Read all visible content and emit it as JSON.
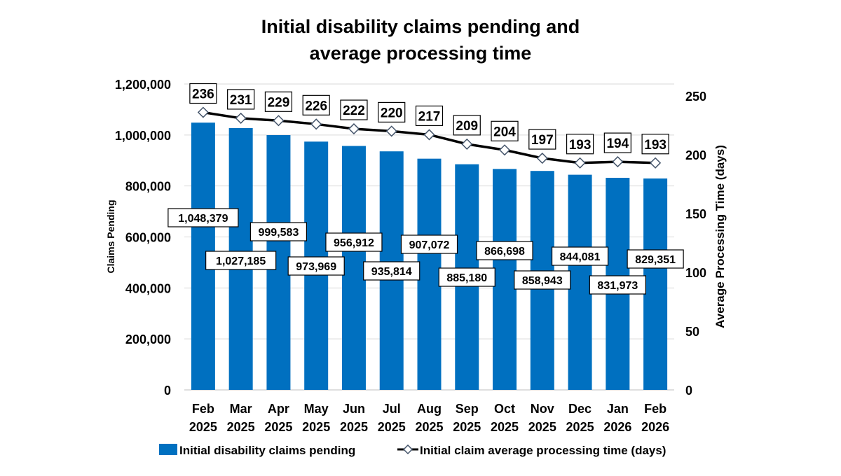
{
  "chart_data": {
    "type": "bar+line",
    "title": "Initial disability claims pending and average processing time",
    "title_lines": [
      "Initial disability claims pending and",
      "average processing time"
    ],
    "categories": [
      [
        "Feb",
        "2025"
      ],
      [
        "Mar",
        "2025"
      ],
      [
        "Apr",
        "2025"
      ],
      [
        "May",
        "2025"
      ],
      [
        "Jun",
        "2025"
      ],
      [
        "Jul",
        "2025"
      ],
      [
        "Aug",
        "2025"
      ],
      [
        "Sep",
        "2025"
      ],
      [
        "Oct",
        "2025"
      ],
      [
        "Nov",
        "2025"
      ],
      [
        "Dec",
        "2025"
      ],
      [
        "Jan",
        "2026"
      ],
      [
        "Feb",
        "2026"
      ]
    ],
    "ylabel_left": "Claims Pending",
    "ylabel_right": "Average Processing Time (days)",
    "ylim_left": [
      0,
      1200000
    ],
    "yticks_left": [
      "0",
      "200,000",
      "400,000",
      "600,000",
      "800,000",
      "1,000,000",
      "1,200,000"
    ],
    "ylim_right": [
      0,
      250
    ],
    "yticks_right": [
      "0",
      "50",
      "100",
      "150",
      "200",
      "250"
    ],
    "grid": true,
    "legend_position": "bottom",
    "series": [
      {
        "name": "Initial disability claims pending",
        "type": "bar",
        "axis": "left",
        "color": "#0070C0",
        "values": [
          1048379,
          1027185,
          999583,
          973969,
          956912,
          935814,
          907072,
          885180,
          866698,
          858943,
          844081,
          831973,
          829351
        ],
        "labels": [
          "1,048,379",
          "1,027,185",
          "999,583",
          "973,969",
          "956,912",
          "935,814",
          "907,072",
          "885,180",
          "866,698",
          "858,943",
          "844,081",
          "831,973",
          "829,351"
        ]
      },
      {
        "name": "Initial claim average processing time (days)",
        "type": "line",
        "axis": "right",
        "color": "#000000",
        "marker": "diamond",
        "marker_color": "#44546A",
        "values": [
          236,
          231,
          229,
          226,
          222,
          220,
          217,
          209,
          204,
          197,
          193,
          194,
          193
        ],
        "labels": [
          "236",
          "231",
          "229",
          "226",
          "222",
          "220",
          "217",
          "209",
          "204",
          "197",
          "193",
          "194",
          "193"
        ]
      }
    ]
  }
}
